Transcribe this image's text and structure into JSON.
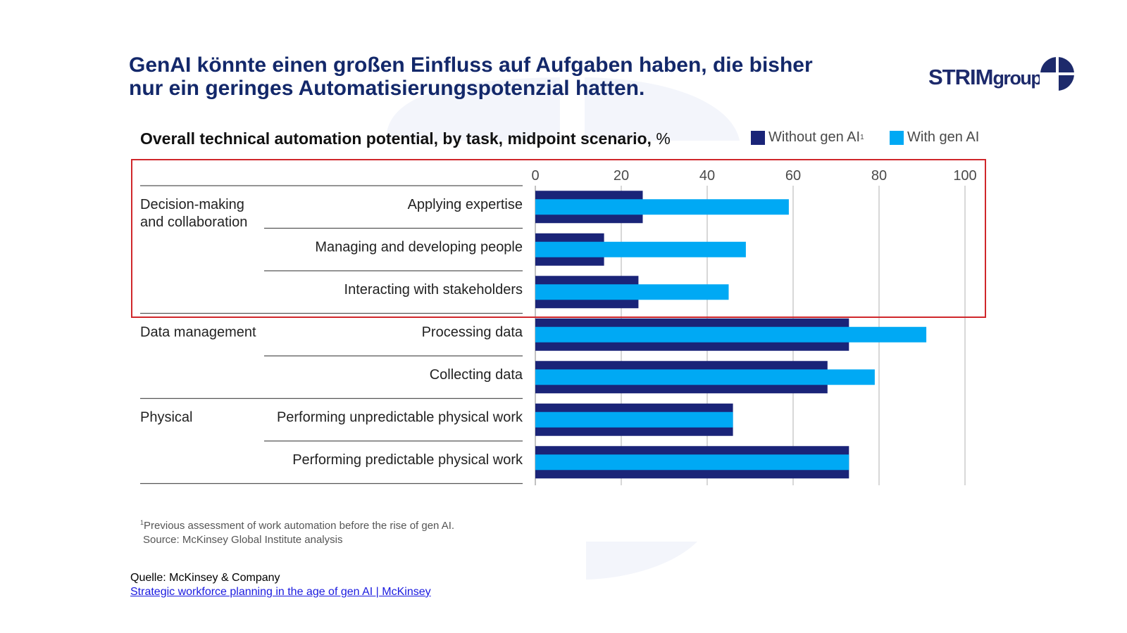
{
  "slide": {
    "title_line1": "GenAI könnte einen großen Einfluss auf Aufgaben haben, die bisher",
    "title_line2": "nur ein geringes Automatisierungspotenzial hatten.",
    "logo": {
      "strim": "STRIM",
      "group": "group"
    },
    "footnote_line1": "Previous assessment of work automation before the rise of gen AI.",
    "footnote_marker": "1",
    "footnote_line2": "Source: McKinsey Global Institute analysis",
    "source_label": "Quelle: McKinsey & Company",
    "source_link_text": "Strategic workforce planning in the age of gen AI | McKinsey",
    "colors": {
      "title": "#13286a",
      "without_gen_ai": "#1a2478",
      "with_gen_ai": "#00a9f4",
      "highlight_box": "#d0272b",
      "link": "#1a1adf"
    }
  },
  "chart_data": {
    "type": "bar",
    "orientation": "horizontal",
    "title": "Overall technical automation potential, by task, midpoint scenario,",
    "title_unit": "%",
    "xlim": [
      0,
      100
    ],
    "xticks": [
      "0",
      "20",
      "40",
      "60",
      "80",
      "100"
    ],
    "grid": true,
    "legend_placement": "top-right",
    "groups": [
      {
        "label_line1": "Decision-making",
        "label_line2": "and collaboration",
        "categories": [
          "Applying expertise",
          "Managing and developing people",
          "Interacting with stakeholders"
        ]
      },
      {
        "label_line1": "Data management",
        "label_line2": "",
        "categories": [
          "Processing data",
          "Collecting data"
        ]
      },
      {
        "label_line1": "Physical",
        "label_line2": "",
        "categories": [
          "Performing unpredictable physical work",
          "Performing predictable physical work"
        ]
      }
    ],
    "categories": [
      "Applying expertise",
      "Managing and developing people",
      "Interacting with stakeholders",
      "Processing data",
      "Collecting data",
      "Performing unpredictable physical work",
      "Performing predictable physical work"
    ],
    "series": [
      {
        "name": "Without gen AI",
        "marker": "1",
        "color": "#1a2478",
        "values": [
          25,
          16,
          24,
          73,
          68,
          46,
          73
        ]
      },
      {
        "name": "With gen AI",
        "color": "#00a9f4",
        "values": [
          59,
          49,
          45,
          91,
          79,
          46,
          73
        ]
      }
    ]
  }
}
